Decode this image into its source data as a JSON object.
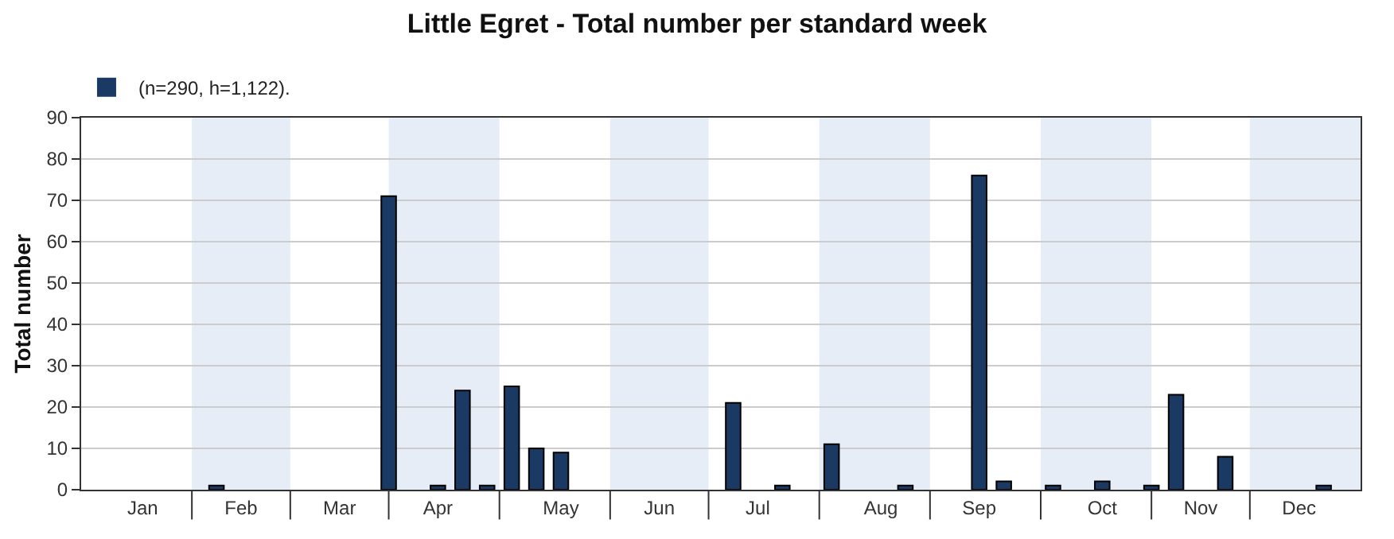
{
  "chart_data": {
    "type": "bar",
    "title": "Little Egret - Total number per standard week",
    "ylabel": "Total number",
    "categories": [
      null,
      null,
      "Jan",
      null,
      null,
      null,
      "Feb",
      null,
      null,
      null,
      "Mar",
      null,
      null,
      null,
      "Apr",
      null,
      null,
      null,
      null,
      "May",
      null,
      null,
      null,
      "Jun",
      null,
      null,
      null,
      "Jul",
      null,
      null,
      null,
      null,
      "Aug",
      null,
      null,
      null,
      "Sep",
      null,
      null,
      null,
      null,
      "Oct",
      null,
      null,
      null,
      "Nov",
      null,
      null,
      null,
      "Dec",
      null,
      null
    ],
    "series": [
      {
        "name": "(n=290, h=1,122).",
        "color": "#1b3a63",
        "values": [
          0,
          0,
          0,
          0,
          0,
          1,
          0,
          0,
          0,
          0,
          0,
          0,
          71,
          0,
          1,
          24,
          1,
          25,
          10,
          9,
          0,
          0,
          0,
          0,
          0,
          0,
          21,
          0,
          1,
          0,
          11,
          0,
          0,
          1,
          0,
          0,
          76,
          2,
          0,
          1,
          0,
          2,
          0,
          1,
          23,
          0,
          8,
          0,
          0,
          0,
          1,
          0
        ]
      }
    ],
    "ylim": [
      0,
      90
    ],
    "yticks": [
      0,
      10,
      20,
      30,
      40,
      50,
      60,
      70,
      80,
      90
    ],
    "grid": "y",
    "legend": "top left"
  }
}
